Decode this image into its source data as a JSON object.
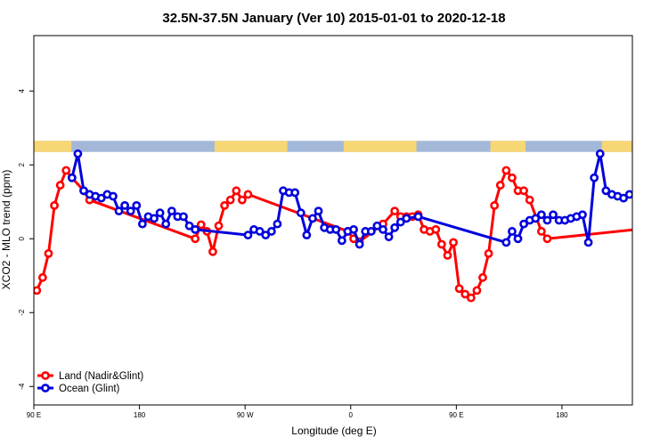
{
  "chart_data": {
    "type": "line",
    "title": "32.5N-37.5N January (Ver 10)   2015-01-01 to 2020-12-18",
    "xlabel": "Longitude (deg E)",
    "ylabel": "XCO2 - MLO trend (ppm)",
    "xlim": [
      90,
      600
    ],
    "ylim": [
      -4.5,
      5.5
    ],
    "x_ticks": [
      {
        "value": 90,
        "label": "90 E"
      },
      {
        "value": 180,
        "label": "180"
      },
      {
        "value": 270,
        "label": "90 W"
      },
      {
        "value": 360,
        "label": "0"
      },
      {
        "value": 450,
        "label": "90 E"
      },
      {
        "value": 540,
        "label": "180"
      }
    ],
    "y_ticks": [
      {
        "value": -4,
        "label": "-4"
      },
      {
        "value": -2,
        "label": "-2"
      },
      {
        "value": 0,
        "label": "0"
      },
      {
        "value": 2,
        "label": "2"
      },
      {
        "value": 4,
        "label": "4"
      }
    ],
    "land_ocean_strip": {
      "y_range": [
        2.35,
        2.65
      ],
      "ocean_color": "#a3b8d9",
      "land_color": "#f7d774",
      "land_segmentsths": [
        [
          90,
          122
        ],
        [
          244,
          306
        ],
        [
          354,
          416
        ],
        [
          479,
          509
        ],
        [
          574,
          604
        ]
      ]
    },
    "legend": {
      "position": "bottom-left",
      "entries": [
        "Land (Nadir&Glint)",
        "Ocean (Glint)"
      ]
    },
    "series": [
      {
        "name": "Land (Nadir&Glint)",
        "color": "#ff0000",
        "x": [
          92.5,
          97.5,
          102.5,
          107.5,
          112.5,
          117.5,
          122.5,
          132.5,
          137.5,
          227.5,
          232.5,
          237.5,
          242.5,
          247.5,
          252.5,
          257.5,
          262.5,
          267.5,
          272.5,
          357.5,
          362.5,
          367.5,
          387.5,
          397.5,
          402.5,
          407.5,
          412.5,
          417.5,
          422.5,
          427.5,
          432.5,
          437.5,
          442.5,
          447.5,
          452.5,
          457.5,
          462.5,
          467.5,
          472.5,
          477.5,
          482.5,
          487.5,
          492.5,
          497.5,
          502.5,
          507.5,
          512.5,
          522.5,
          527.5,
          617.5
        ],
        "y": [
          -1.4,
          -1.05,
          -0.4,
          0.9,
          1.45,
          1.85,
          1.65,
          1.3,
          1.05,
          0.0,
          0.38,
          0.2,
          -0.35,
          0.35,
          0.9,
          1.05,
          1.3,
          1.05,
          1.2,
          0.2,
          0.0,
          -0.08,
          0.4,
          0.75,
          0.6,
          0.6,
          0.6,
          0.65,
          0.25,
          0.2,
          0.25,
          -0.15,
          -0.45,
          -0.1,
          -1.35,
          -1.5,
          -1.6,
          -1.4,
          -1.05,
          -0.4,
          0.9,
          1.45,
          1.85,
          1.65,
          1.3,
          1.3,
          1.05,
          0.2,
          0.0,
          0.3
        ]
      },
      {
        "name": "Ocean (Glint)",
        "color": "#0000dd",
        "x": [
          122.5,
          127.5,
          132.5,
          137.5,
          142.5,
          147.5,
          152.5,
          157.5,
          162.5,
          167.5,
          172.5,
          177.5,
          182.5,
          187.5,
          192.5,
          197.5,
          202.5,
          207.5,
          212.5,
          217.5,
          222.5,
          227.5,
          272.5,
          277.5,
          282.5,
          287.5,
          292.5,
          297.5,
          302.5,
          307.5,
          312.5,
          317.5,
          322.5,
          327.5,
          332.5,
          337.5,
          342.5,
          347.5,
          352.5,
          357.5,
          362.5,
          367.5,
          372.5,
          377.5,
          382.5,
          387.5,
          392.5,
          397.5,
          402.5,
          407.5,
          417.5,
          492.5,
          497.5,
          502.5,
          507.5,
          512.5,
          517.5,
          522.5,
          527.5,
          532.5,
          537.5,
          542.5,
          547.5,
          552.5,
          557.5,
          562.5,
          567.5,
          572.5,
          577.5,
          582.5,
          587.5,
          592.5,
          597.5
        ],
        "y": [
          1.65,
          2.3,
          1.3,
          1.2,
          1.15,
          1.1,
          1.2,
          1.15,
          0.75,
          0.9,
          0.75,
          0.9,
          0.4,
          0.6,
          0.55,
          0.7,
          0.4,
          0.75,
          0.6,
          0.6,
          0.35,
          0.25,
          0.1,
          0.25,
          0.2,
          0.1,
          0.2,
          0.4,
          1.3,
          1.25,
          1.25,
          0.7,
          0.1,
          0.55,
          0.75,
          0.3,
          0.25,
          0.25,
          -0.05,
          0.2,
          0.25,
          -0.15,
          0.2,
          0.2,
          0.35,
          0.25,
          0.05,
          0.3,
          0.45,
          0.55,
          0.6,
          -0.1,
          0.2,
          0.0,
          0.4,
          0.5,
          0.55,
          0.65,
          0.5,
          0.65,
          0.5,
          0.5,
          0.55,
          0.6,
          0.65,
          -0.1,
          1.65,
          2.3,
          1.3,
          1.2,
          1.15,
          1.1,
          1.2
        ]
      }
    ]
  }
}
